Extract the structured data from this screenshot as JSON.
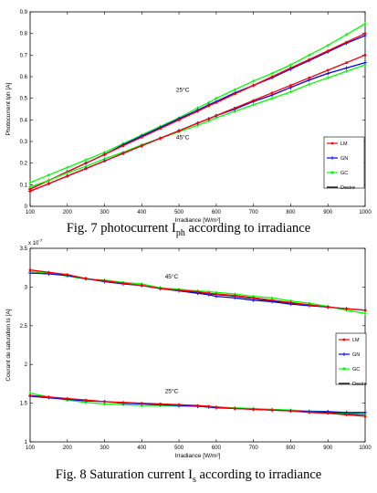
{
  "figures": [
    {
      "caption_main": "Fig. 7 photocurrent I",
      "caption_sub": "ph",
      "caption_tail": " according to irradiance"
    },
    {
      "caption_main": "Fig. 8 Saturation current I",
      "caption_sub": "s",
      "caption_tail": " according to irradiance"
    }
  ],
  "chart_data": [
    {
      "type": "line",
      "xlabel": "Irradiance [W/m²]",
      "ylabel": "Photocurrent Iph [A]",
      "xlim": [
        100,
        1000
      ],
      "ylim": [
        0,
        0.9
      ],
      "xticks": [
        "100",
        "200",
        "300",
        "400",
        "500",
        "600",
        "700",
        "800",
        "900",
        "1000"
      ],
      "yticks": [
        "0",
        "0.1",
        "0.2",
        "0.3",
        "0.4",
        "0.5",
        "0.6",
        "0.7",
        "0.8",
        "0.9"
      ],
      "grid": false,
      "legend_position": "bottom-right",
      "legend": [
        "LM",
        "GN",
        "GC",
        "Desire"
      ],
      "colors": {
        "LM": "#ff0000",
        "GN": "#0000ff",
        "GC": "#00ff00",
        "Desire": "#000000"
      },
      "annotations": [
        {
          "text": "25°C",
          "x": 510,
          "y": 0.53
        },
        {
          "text": "45°C",
          "x": 510,
          "y": 0.31
        }
      ],
      "x": [
        100,
        150,
        200,
        250,
        300,
        350,
        400,
        450,
        500,
        550,
        580,
        600,
        650,
        700,
        750,
        800,
        850,
        900,
        950,
        1000
      ],
      "groups": [
        {
          "annotation": "25°C",
          "series": [
            {
              "name": "LM",
              "values": [
                0.08,
                0.12,
                0.16,
                0.2,
                0.24,
                0.28,
                0.32,
                0.36,
                0.4,
                0.44,
                0.465,
                0.48,
                0.52,
                0.56,
                0.6,
                0.64,
                0.68,
                0.72,
                0.76,
                0.8
              ]
            },
            {
              "name": "GN",
              "values": [
                0.08,
                0.12,
                0.16,
                0.2,
                0.24,
                0.285,
                0.325,
                0.365,
                0.405,
                0.445,
                0.47,
                0.485,
                0.525,
                0.56,
                0.595,
                0.635,
                0.675,
                0.715,
                0.755,
                0.79
              ]
            },
            {
              "name": "GC",
              "values": [
                0.11,
                0.145,
                0.18,
                0.215,
                0.25,
                0.29,
                0.33,
                0.37,
                0.41,
                0.455,
                0.48,
                0.5,
                0.54,
                0.58,
                0.615,
                0.655,
                0.7,
                0.745,
                0.795,
                0.845
              ]
            },
            {
              "name": "Desire",
              "values": [
                0.08,
                0.12,
                0.16,
                0.2,
                0.24,
                0.28,
                0.32,
                0.36,
                0.4,
                0.44,
                0.464,
                0.48,
                0.52,
                0.56,
                0.6,
                0.64,
                0.68,
                0.72,
                0.76,
                0.8
              ]
            }
          ]
        },
        {
          "annotation": "45°C",
          "series": [
            {
              "name": "LM",
              "values": [
                0.07,
                0.105,
                0.14,
                0.175,
                0.21,
                0.245,
                0.28,
                0.315,
                0.35,
                0.385,
                0.405,
                0.42,
                0.455,
                0.49,
                0.525,
                0.56,
                0.595,
                0.63,
                0.665,
                0.7
              ]
            },
            {
              "name": "GN",
              "values": [
                0.07,
                0.105,
                0.14,
                0.175,
                0.21,
                0.245,
                0.28,
                0.315,
                0.35,
                0.385,
                0.405,
                0.42,
                0.45,
                0.485,
                0.515,
                0.55,
                0.585,
                0.615,
                0.64,
                0.665
              ]
            },
            {
              "name": "GC",
              "values": [
                0.09,
                0.12,
                0.155,
                0.185,
                0.22,
                0.25,
                0.285,
                0.315,
                0.345,
                0.375,
                0.395,
                0.41,
                0.44,
                0.47,
                0.5,
                0.53,
                0.565,
                0.595,
                0.625,
                0.655
              ]
            },
            {
              "name": "Desire",
              "values": [
                0.07,
                0.105,
                0.14,
                0.175,
                0.21,
                0.245,
                0.28,
                0.315,
                0.35,
                0.385,
                0.405,
                0.42,
                0.455,
                0.49,
                0.525,
                0.56,
                0.595,
                0.63,
                0.665,
                0.7
              ]
            }
          ]
        }
      ]
    },
    {
      "type": "line",
      "xlabel": "Irradiance [W/m²]",
      "ylabel": "Courant de saturation Is [A]",
      "exponent_label": "x 10",
      "exponent_power": "-7",
      "xlim": [
        100,
        1000
      ],
      "ylim": [
        1,
        3.5
      ],
      "xticks": [
        "100",
        "200",
        "300",
        "400",
        "500",
        "600",
        "700",
        "800",
        "900",
        "1000"
      ],
      "yticks": [
        "1",
        "1.5",
        "2",
        "2.5",
        "3",
        "3.5"
      ],
      "grid": false,
      "legend_position": "right",
      "legend": [
        "LM",
        "GN",
        "GC",
        "Desire"
      ],
      "colors": {
        "LM": "#ff0000",
        "GN": "#0000ff",
        "GC": "#00ff00",
        "Desire": "#000000"
      },
      "annotations": [
        {
          "text": "45°C",
          "x": 480,
          "y": 3.11
        },
        {
          "text": "25°C",
          "x": 480,
          "y": 1.63
        }
      ],
      "x": [
        100,
        150,
        200,
        250,
        300,
        350,
        400,
        450,
        500,
        550,
        580,
        600,
        650,
        700,
        750,
        800,
        850,
        900,
        950,
        1000
      ],
      "groups": [
        {
          "annotation": "45°C",
          "series": [
            {
              "name": "LM",
              "values": [
                3.22,
                3.19,
                3.16,
                3.11,
                3.08,
                3.05,
                3.02,
                2.98,
                2.96,
                2.94,
                2.92,
                2.91,
                2.89,
                2.86,
                2.83,
                2.8,
                2.77,
                2.74,
                2.72,
                2.7
              ]
            },
            {
              "name": "GN",
              "values": [
                3.18,
                3.17,
                3.15,
                3.11,
                3.07,
                3.04,
                3.02,
                2.98,
                2.95,
                2.92,
                2.9,
                2.88,
                2.86,
                2.83,
                2.81,
                2.78,
                2.76,
                2.74,
                2.72,
                2.7
              ]
            },
            {
              "name": "GC",
              "values": [
                3.2,
                3.18,
                3.14,
                3.1,
                3.09,
                3.06,
                3.04,
                2.99,
                2.97,
                2.95,
                2.94,
                2.93,
                2.91,
                2.88,
                2.86,
                2.82,
                2.79,
                2.75,
                2.7,
                2.66
              ]
            },
            {
              "name": "Desire",
              "values": [
                3.2,
                3.17,
                3.15,
                3.11,
                3.07,
                3.04,
                3.02,
                2.98,
                2.95,
                2.93,
                2.91,
                2.9,
                2.88,
                2.85,
                2.82,
                2.79,
                2.77,
                2.74,
                2.72,
                2.7
              ]
            }
          ]
        },
        {
          "annotation": "25°C",
          "series": [
            {
              "name": "LM",
              "values": [
                1.6,
                1.58,
                1.56,
                1.54,
                1.52,
                1.51,
                1.5,
                1.49,
                1.48,
                1.47,
                1.46,
                1.45,
                1.43,
                1.42,
                1.41,
                1.4,
                1.38,
                1.37,
                1.35,
                1.33
              ]
            },
            {
              "name": "GN",
              "values": [
                1.59,
                1.57,
                1.55,
                1.53,
                1.52,
                1.5,
                1.49,
                1.48,
                1.47,
                1.46,
                1.45,
                1.44,
                1.43,
                1.42,
                1.41,
                1.4,
                1.39,
                1.39,
                1.38,
                1.38
              ]
            },
            {
              "name": "GC",
              "values": [
                1.63,
                1.58,
                1.54,
                1.51,
                1.49,
                1.48,
                1.47,
                1.47,
                1.46,
                1.46,
                1.45,
                1.45,
                1.44,
                1.43,
                1.42,
                1.41,
                1.4,
                1.39,
                1.37,
                1.36
              ]
            },
            {
              "name": "Desire",
              "values": [
                1.6,
                1.58,
                1.56,
                1.54,
                1.52,
                1.5,
                1.49,
                1.48,
                1.47,
                1.46,
                1.45,
                1.44,
                1.43,
                1.42,
                1.41,
                1.4,
                1.39,
                1.38,
                1.36,
                1.35
              ]
            }
          ]
        }
      ]
    }
  ]
}
